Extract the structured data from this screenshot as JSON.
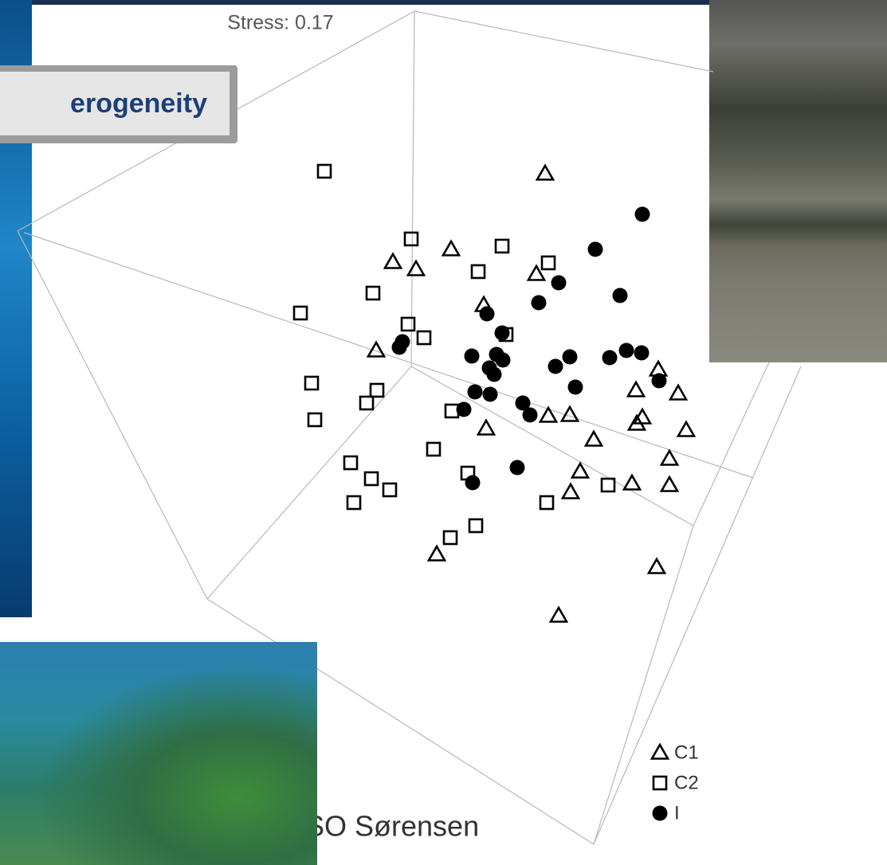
{
  "slide_title": "erogeneity",
  "chart_data": {
    "type": "scatter",
    "annotation": "Stress: 0.17",
    "method_label": "SO Sørensen",
    "series": [
      {
        "name": "C1",
        "marker": "triangle",
        "color": "#000000",
        "x": [
          684,
          566,
          493,
          522,
          673,
          607,
          472,
          826,
          798,
          851,
          688,
          715,
          610,
          806,
          799,
          861,
          745,
          840,
          728,
          716,
          793,
          840,
          548,
          824,
          701
        ],
        "y": [
          868,
          773,
          757,
          748,
          742,
          703,
          646,
          622,
          596,
          592,
          564,
          565,
          548,
          562,
          554,
          546,
          534,
          510,
          494,
          468,
          479,
          477,
          390,
          374,
          313
        ]
      },
      {
        "name": "C2",
        "marker": "square",
        "color": "#000000",
        "x": [
          407,
          516,
          630,
          600,
          688,
          468,
          377,
          512,
          532,
          635,
          391,
          473,
          460,
          395,
          567,
          544,
          440,
          466,
          489,
          444,
          587,
          686,
          763,
          597,
          565
        ],
        "y": [
          871,
          786,
          777,
          745,
          756,
          718,
          693,
          679,
          662,
          666,
          605,
          596,
          580,
          559,
          570,
          522,
          505,
          485,
          471,
          455,
          492,
          455,
          477,
          426,
          411
        ]
      },
      {
        "name": "I",
        "marker": "dot",
        "color": "#000000",
        "x": [
          806,
          747,
          701,
          676,
          778,
          611,
          501,
          505,
          630,
          592,
          623,
          614,
          631,
          715,
          697,
          765,
          786,
          805,
          620,
          596,
          615,
          722,
          827,
          582,
          656,
          665,
          649,
          593
        ],
        "y": [
          817,
          773,
          731,
          706,
          715,
          692,
          650,
          657,
          668,
          639,
          641,
          624,
          634,
          638,
          626,
          637,
          646,
          643,
          616,
          594,
          591,
          600,
          608,
          572,
          580,
          565,
          499,
          480
        ]
      }
    ]
  }
}
